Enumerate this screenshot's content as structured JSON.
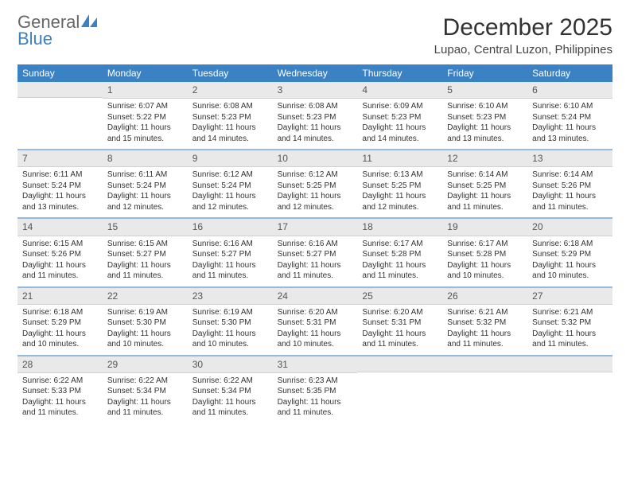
{
  "logo": {
    "textGray": "General",
    "textBlue": "Blue"
  },
  "title": "December 2025",
  "location": "Lupao, Central Luzon, Philippines",
  "weekdays": [
    "Sunday",
    "Monday",
    "Tuesday",
    "Wednesday",
    "Thursday",
    "Friday",
    "Saturday"
  ],
  "colors": {
    "headerBlue": "#3b82c4",
    "grayBar": "#e9e9e9",
    "textDark": "#333333"
  },
  "weeks": [
    [
      {
        "blank": true
      },
      {
        "num": "1",
        "sunrise": "Sunrise: 6:07 AM",
        "sunset": "Sunset: 5:22 PM",
        "day1": "Daylight: 11 hours",
        "day2": "and 15 minutes."
      },
      {
        "num": "2",
        "sunrise": "Sunrise: 6:08 AM",
        "sunset": "Sunset: 5:23 PM",
        "day1": "Daylight: 11 hours",
        "day2": "and 14 minutes."
      },
      {
        "num": "3",
        "sunrise": "Sunrise: 6:08 AM",
        "sunset": "Sunset: 5:23 PM",
        "day1": "Daylight: 11 hours",
        "day2": "and 14 minutes."
      },
      {
        "num": "4",
        "sunrise": "Sunrise: 6:09 AM",
        "sunset": "Sunset: 5:23 PM",
        "day1": "Daylight: 11 hours",
        "day2": "and 14 minutes."
      },
      {
        "num": "5",
        "sunrise": "Sunrise: 6:10 AM",
        "sunset": "Sunset: 5:23 PM",
        "day1": "Daylight: 11 hours",
        "day2": "and 13 minutes."
      },
      {
        "num": "6",
        "sunrise": "Sunrise: 6:10 AM",
        "sunset": "Sunset: 5:24 PM",
        "day1": "Daylight: 11 hours",
        "day2": "and 13 minutes."
      }
    ],
    [
      {
        "num": "7",
        "sunrise": "Sunrise: 6:11 AM",
        "sunset": "Sunset: 5:24 PM",
        "day1": "Daylight: 11 hours",
        "day2": "and 13 minutes."
      },
      {
        "num": "8",
        "sunrise": "Sunrise: 6:11 AM",
        "sunset": "Sunset: 5:24 PM",
        "day1": "Daylight: 11 hours",
        "day2": "and 12 minutes."
      },
      {
        "num": "9",
        "sunrise": "Sunrise: 6:12 AM",
        "sunset": "Sunset: 5:24 PM",
        "day1": "Daylight: 11 hours",
        "day2": "and 12 minutes."
      },
      {
        "num": "10",
        "sunrise": "Sunrise: 6:12 AM",
        "sunset": "Sunset: 5:25 PM",
        "day1": "Daylight: 11 hours",
        "day2": "and 12 minutes."
      },
      {
        "num": "11",
        "sunrise": "Sunrise: 6:13 AM",
        "sunset": "Sunset: 5:25 PM",
        "day1": "Daylight: 11 hours",
        "day2": "and 12 minutes."
      },
      {
        "num": "12",
        "sunrise": "Sunrise: 6:14 AM",
        "sunset": "Sunset: 5:25 PM",
        "day1": "Daylight: 11 hours",
        "day2": "and 11 minutes."
      },
      {
        "num": "13",
        "sunrise": "Sunrise: 6:14 AM",
        "sunset": "Sunset: 5:26 PM",
        "day1": "Daylight: 11 hours",
        "day2": "and 11 minutes."
      }
    ],
    [
      {
        "num": "14",
        "sunrise": "Sunrise: 6:15 AM",
        "sunset": "Sunset: 5:26 PM",
        "day1": "Daylight: 11 hours",
        "day2": "and 11 minutes."
      },
      {
        "num": "15",
        "sunrise": "Sunrise: 6:15 AM",
        "sunset": "Sunset: 5:27 PM",
        "day1": "Daylight: 11 hours",
        "day2": "and 11 minutes."
      },
      {
        "num": "16",
        "sunrise": "Sunrise: 6:16 AM",
        "sunset": "Sunset: 5:27 PM",
        "day1": "Daylight: 11 hours",
        "day2": "and 11 minutes."
      },
      {
        "num": "17",
        "sunrise": "Sunrise: 6:16 AM",
        "sunset": "Sunset: 5:27 PM",
        "day1": "Daylight: 11 hours",
        "day2": "and 11 minutes."
      },
      {
        "num": "18",
        "sunrise": "Sunrise: 6:17 AM",
        "sunset": "Sunset: 5:28 PM",
        "day1": "Daylight: 11 hours",
        "day2": "and 11 minutes."
      },
      {
        "num": "19",
        "sunrise": "Sunrise: 6:17 AM",
        "sunset": "Sunset: 5:28 PM",
        "day1": "Daylight: 11 hours",
        "day2": "and 10 minutes."
      },
      {
        "num": "20",
        "sunrise": "Sunrise: 6:18 AM",
        "sunset": "Sunset: 5:29 PM",
        "day1": "Daylight: 11 hours",
        "day2": "and 10 minutes."
      }
    ],
    [
      {
        "num": "21",
        "sunrise": "Sunrise: 6:18 AM",
        "sunset": "Sunset: 5:29 PM",
        "day1": "Daylight: 11 hours",
        "day2": "and 10 minutes."
      },
      {
        "num": "22",
        "sunrise": "Sunrise: 6:19 AM",
        "sunset": "Sunset: 5:30 PM",
        "day1": "Daylight: 11 hours",
        "day2": "and 10 minutes."
      },
      {
        "num": "23",
        "sunrise": "Sunrise: 6:19 AM",
        "sunset": "Sunset: 5:30 PM",
        "day1": "Daylight: 11 hours",
        "day2": "and 10 minutes."
      },
      {
        "num": "24",
        "sunrise": "Sunrise: 6:20 AM",
        "sunset": "Sunset: 5:31 PM",
        "day1": "Daylight: 11 hours",
        "day2": "and 10 minutes."
      },
      {
        "num": "25",
        "sunrise": "Sunrise: 6:20 AM",
        "sunset": "Sunset: 5:31 PM",
        "day1": "Daylight: 11 hours",
        "day2": "and 11 minutes."
      },
      {
        "num": "26",
        "sunrise": "Sunrise: 6:21 AM",
        "sunset": "Sunset: 5:32 PM",
        "day1": "Daylight: 11 hours",
        "day2": "and 11 minutes."
      },
      {
        "num": "27",
        "sunrise": "Sunrise: 6:21 AM",
        "sunset": "Sunset: 5:32 PM",
        "day1": "Daylight: 11 hours",
        "day2": "and 11 minutes."
      }
    ],
    [
      {
        "num": "28",
        "sunrise": "Sunrise: 6:22 AM",
        "sunset": "Sunset: 5:33 PM",
        "day1": "Daylight: 11 hours",
        "day2": "and 11 minutes."
      },
      {
        "num": "29",
        "sunrise": "Sunrise: 6:22 AM",
        "sunset": "Sunset: 5:34 PM",
        "day1": "Daylight: 11 hours",
        "day2": "and 11 minutes."
      },
      {
        "num": "30",
        "sunrise": "Sunrise: 6:22 AM",
        "sunset": "Sunset: 5:34 PM",
        "day1": "Daylight: 11 hours",
        "day2": "and 11 minutes."
      },
      {
        "num": "31",
        "sunrise": "Sunrise: 6:23 AM",
        "sunset": "Sunset: 5:35 PM",
        "day1": "Daylight: 11 hours",
        "day2": "and 11 minutes."
      },
      {
        "blank": true
      },
      {
        "blank": true
      },
      {
        "blank": true
      }
    ]
  ]
}
